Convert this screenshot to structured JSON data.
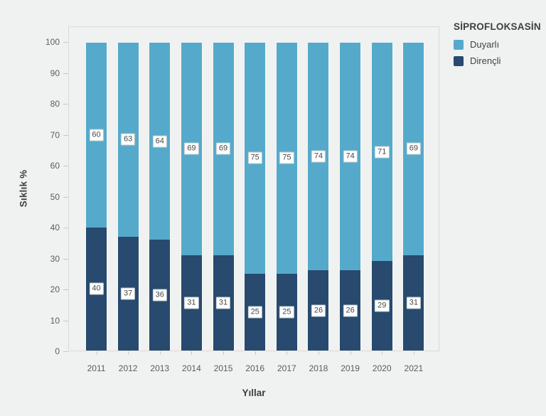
{
  "page": {
    "background_color": "#F0F1F1"
  },
  "chart_data": {
    "type": "bar",
    "stacked": true,
    "title": "SİPROFLOKSASİN",
    "xlabel": "Yıllar",
    "ylabel": "Sıklık %",
    "ylim": [
      0,
      100
    ],
    "yticks": [
      0,
      10,
      20,
      30,
      40,
      50,
      60,
      70,
      80,
      90,
      100
    ],
    "grid": false,
    "legend_position": "top-right",
    "bar_labels": true,
    "categories": [
      "2011",
      "2012",
      "2013",
      "2014",
      "2015",
      "2016",
      "2017",
      "2018",
      "2019",
      "2020",
      "2021"
    ],
    "series": [
      {
        "name": "Duyarlı",
        "color": "#55AACB",
        "values": [
          60,
          63,
          64,
          69,
          69,
          75,
          75,
          74,
          74,
          71,
          69
        ]
      },
      {
        "name": "Dirençli",
        "color": "#274A6E",
        "values": [
          40,
          37,
          36,
          31,
          31,
          25,
          25,
          26,
          26,
          29,
          31
        ]
      }
    ],
    "colors": {
      "plot_border": "#D8D9DA",
      "tick_mark": "#C7C8C9",
      "tick_label": "#5A5C5E",
      "axis_title": "#3C3E40",
      "bar_label_text": "#45484A",
      "bar_label_border": "#C6C9CB",
      "bar_label_background": "#FFFFFF"
    }
  }
}
